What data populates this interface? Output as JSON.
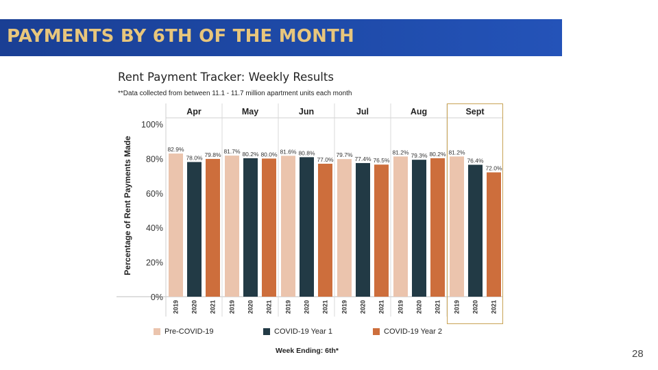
{
  "slide": {
    "title": "PAYMENTS BY 6TH OF THE MONTH",
    "page_number": "28"
  },
  "colors": {
    "banner": "#1e4aa8",
    "banner_text": "#e8c67c",
    "highlight_box": "#c8a253"
  },
  "chart_data": {
    "type": "bar",
    "title": "Rent Payment Tracker: Weekly Results",
    "subtitle": "**Data collected from between 11.1 - 11.7 million apartment units each month",
    "xlabel": "Week Ending: 6th*",
    "ylabel": "Percentage of Rent Payments Made",
    "ylim": [
      0,
      100
    ],
    "yticks": [
      "0%",
      "20%",
      "40%",
      "60%",
      "80%",
      "100%"
    ],
    "grid": false,
    "legend_position": "bottom",
    "categories": [
      "Apr",
      "May",
      "Jun",
      "Jul",
      "Aug",
      "Sept"
    ],
    "highlighted_category": "Sept",
    "series": [
      {
        "name": "Pre-COVID-19",
        "year": "2019",
        "color": "#ebc4ad",
        "values": [
          82.9,
          81.7,
          81.6,
          79.7,
          81.2,
          81.2
        ],
        "labels": [
          "82.9%",
          "81.7%",
          "81.6%",
          "79.7%",
          "81.2%",
          "81.2%"
        ]
      },
      {
        "name": "COVID-19 Year 1",
        "year": "2020",
        "color": "#223a45",
        "values": [
          78.0,
          80.2,
          80.8,
          77.4,
          79.3,
          76.4
        ],
        "labels": [
          "78.0%",
          "80.2%",
          "80.8%",
          "77.4%",
          "79.3%",
          "76.4%"
        ]
      },
      {
        "name": "COVID-19 Year 2",
        "year": "2021",
        "color": "#cd6e3c",
        "values": [
          79.8,
          80.0,
          77.0,
          76.5,
          80.2,
          72.0
        ],
        "labels": [
          "79.8%",
          "80.0%",
          "77.0%",
          "76.5%",
          "80.2%",
          "72.0%"
        ]
      }
    ]
  }
}
